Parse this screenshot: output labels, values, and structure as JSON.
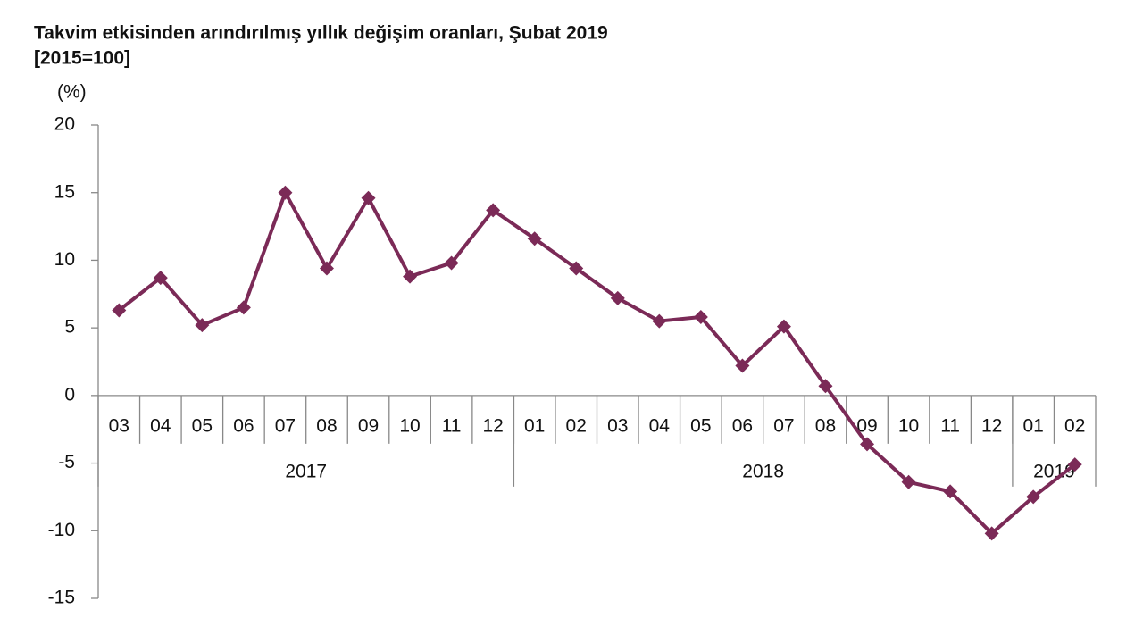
{
  "chart_data": {
    "type": "line",
    "title": "Takvim etkisinden arındırılmış yıllık değişim oranları, Şubat 2019",
    "subtitle": "[2015=100]",
    "y_label": "(%)",
    "categories": [
      "03",
      "04",
      "05",
      "06",
      "07",
      "08",
      "09",
      "10",
      "11",
      "12",
      "01",
      "02",
      "03",
      "04",
      "05",
      "06",
      "07",
      "08",
      "09",
      "10",
      "11",
      "12",
      "01",
      "02"
    ],
    "category_groups": [
      {
        "label": "2017",
        "span": 10
      },
      {
        "label": "2018",
        "span": 12
      },
      {
        "label": "2019",
        "span": 2
      }
    ],
    "series": [
      {
        "color": "#7b2a57",
        "values": [
          6.3,
          8.7,
          5.2,
          6.5,
          15.0,
          9.4,
          14.6,
          8.8,
          9.8,
          13.7,
          11.6,
          9.4,
          7.2,
          5.5,
          5.8,
          2.2,
          5.1,
          0.7,
          -3.6,
          -6.4,
          -7.1,
          -10.2,
          -7.5,
          -5.1
        ]
      }
    ],
    "ylim": [
      -15,
      20
    ],
    "yticks": [
      -15,
      -10,
      -5,
      0,
      5,
      10,
      15,
      20
    ]
  }
}
